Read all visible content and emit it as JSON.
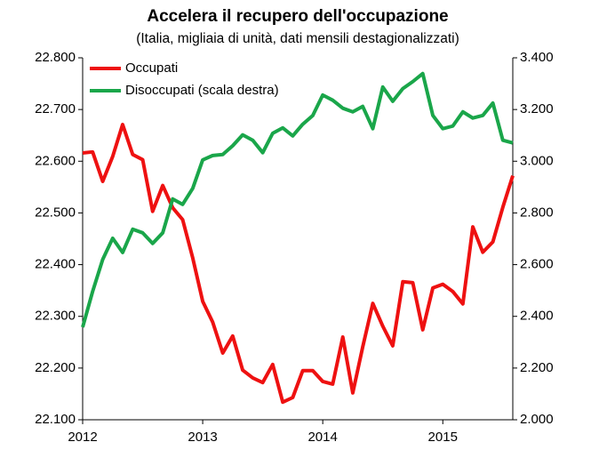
{
  "chart_data": {
    "type": "line",
    "title": "Accelera il recupero dell'occupazione",
    "subtitle": "(Italia, migliaia di unità, dati mensili destagionalizzati)",
    "x": [
      2012,
      2012.083,
      2012.167,
      2012.25,
      2012.333,
      2012.417,
      2012.5,
      2012.583,
      2012.667,
      2012.75,
      2012.833,
      2012.917,
      2013,
      2013.083,
      2013.167,
      2013.25,
      2013.333,
      2013.417,
      2013.5,
      2013.583,
      2013.667,
      2013.75,
      2013.833,
      2013.917,
      2014,
      2014.083,
      2014.167,
      2014.25,
      2014.333,
      2014.417,
      2014.5,
      2014.583,
      2014.667,
      2014.75,
      2014.833,
      2014.917,
      2015,
      2015.083,
      2015.167,
      2015.25,
      2015.333,
      2015.417,
      2015.5,
      2015.583
    ],
    "series": [
      {
        "name": "Occupati",
        "color": "#ee1111",
        "axis": "y",
        "values": [
          22616,
          22618,
          22561,
          22609,
          22671,
          22613,
          22603,
          22503,
          22553,
          22510,
          22487,
          22413,
          22329,
          22289,
          22229,
          22262,
          22196,
          22181,
          22172,
          22207,
          22134,
          22143,
          22195,
          22195,
          22174,
          22169,
          22260,
          22152,
          22241,
          22325,
          22281,
          22243,
          22367,
          22365,
          22274,
          22355,
          22362,
          22348,
          22324,
          22473,
          22424,
          22444,
          22511,
          22572
        ]
      },
      {
        "name": "Disoccupati (scala destra)",
        "color": "#1aa64a",
        "axis": "y2",
        "values": [
          2358,
          2496,
          2620,
          2702,
          2647,
          2737,
          2723,
          2682,
          2723,
          2854,
          2833,
          2895,
          3005,
          3022,
          3026,
          3060,
          3102,
          3081,
          3033,
          3108,
          3129,
          3098,
          3143,
          3177,
          3256,
          3236,
          3205,
          3191,
          3212,
          3126,
          3287,
          3232,
          3281,
          3308,
          3339,
          3177,
          3126,
          3136,
          3191,
          3167,
          3177,
          3225,
          3081,
          3071
        ]
      }
    ],
    "xlim": [
      2012,
      2015.583
    ],
    "xticks": [
      2012,
      2013,
      2014,
      2015
    ],
    "ylim": [
      22100,
      22800
    ],
    "yticks": [
      {
        "value": 22100,
        "label": "22.100"
      },
      {
        "value": 22200,
        "label": "22.200"
      },
      {
        "value": 22300,
        "label": "22.300"
      },
      {
        "value": 22400,
        "label": "22.400"
      },
      {
        "value": 22500,
        "label": "22.500"
      },
      {
        "value": 22600,
        "label": "22.600"
      },
      {
        "value": 22700,
        "label": "22.700"
      },
      {
        "value": 22800,
        "label": "22.800"
      }
    ],
    "y2lim": [
      2000,
      3400
    ],
    "y2ticks": [
      {
        "value": 2000,
        "label": "2.000"
      },
      {
        "value": 2200,
        "label": "2.200"
      },
      {
        "value": 2400,
        "label": "2.400"
      },
      {
        "value": 2600,
        "label": "2.600"
      },
      {
        "value": 2800,
        "label": "2.800"
      },
      {
        "value": 3000,
        "label": "3.000"
      },
      {
        "value": 3200,
        "label": "3.200"
      },
      {
        "value": 3400,
        "label": "3.400"
      }
    ],
    "legend": "upper-left",
    "grid": false
  }
}
